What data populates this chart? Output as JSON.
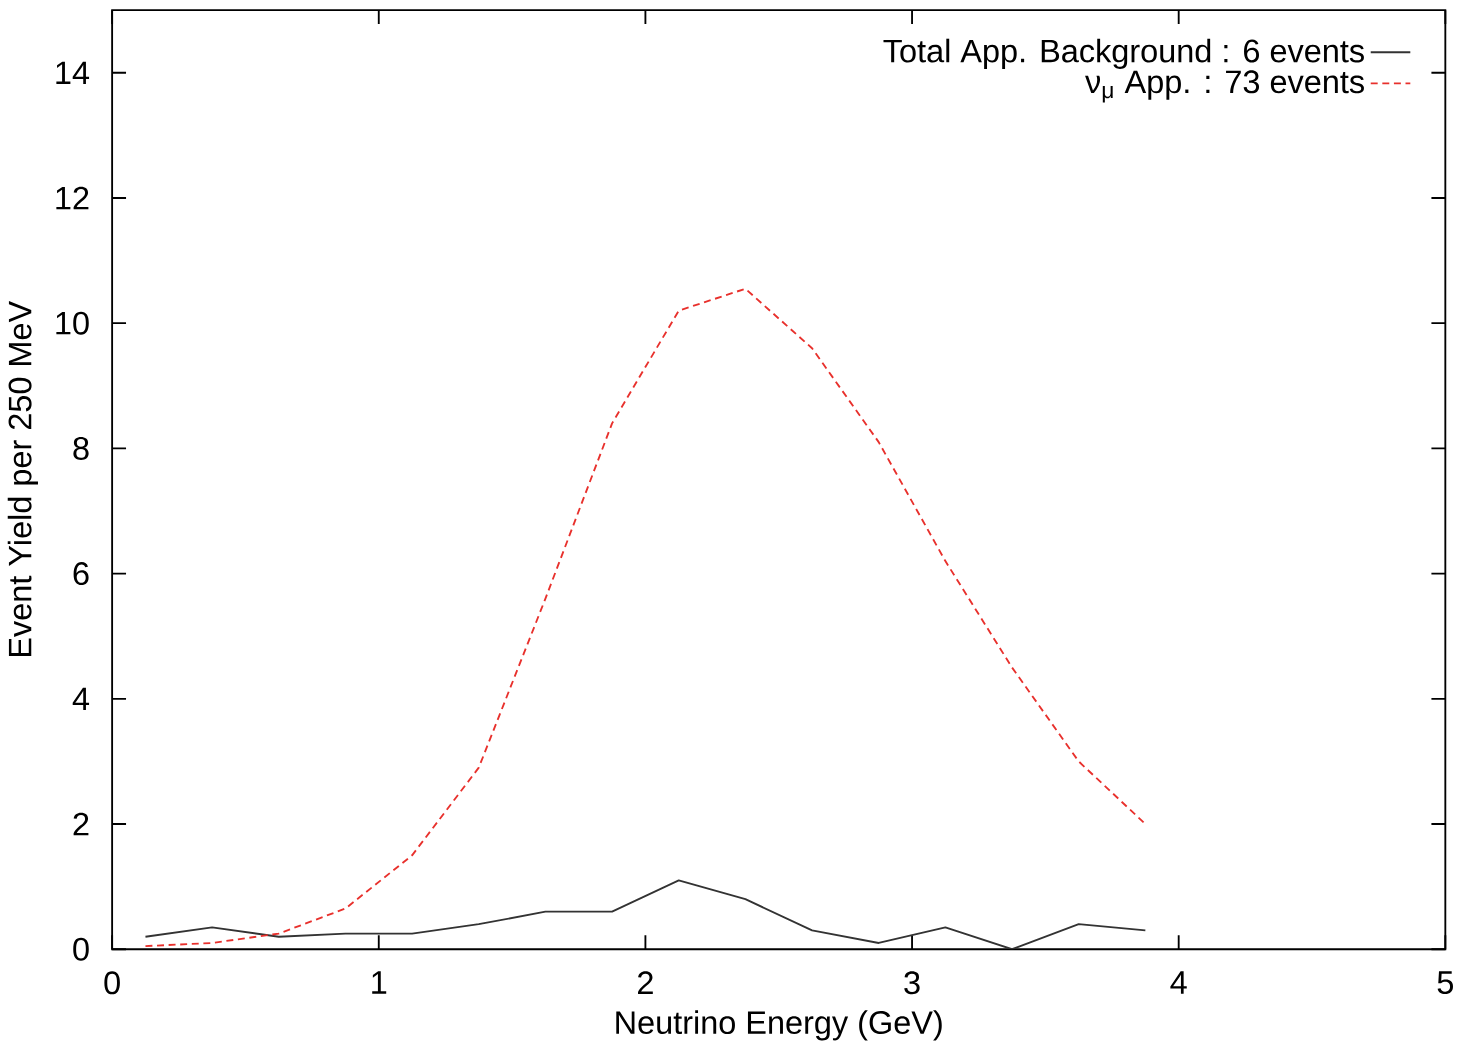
{
  "chart_data": {
    "type": "line",
    "xlabel": "Neutrino Energy (GeV)",
    "ylabel": "Event Yield per 250 MeV",
    "x": [
      0.125,
      0.375,
      0.625,
      0.875,
      1.125,
      1.375,
      1.625,
      1.875,
      2.125,
      2.375,
      2.625,
      2.875,
      3.125,
      3.375,
      3.625,
      3.875
    ],
    "series": [
      {
        "name": "Total App. Background : 6 events",
        "color": "#333333",
        "line_style": "solid",
        "values": [
          0.2,
          0.35,
          0.2,
          0.25,
          0.25,
          0.4,
          0.6,
          0.6,
          1.1,
          0.8,
          0.3,
          0.1,
          0.35,
          0.0,
          0.4,
          0.3
        ]
      },
      {
        "name": "ν$_{μ}$ App. : 73 events",
        "color": "#e8302c",
        "line_style": "dotted",
        "values": [
          0.05,
          0.1,
          0.25,
          0.65,
          1.5,
          2.9,
          5.6,
          8.4,
          10.2,
          10.55,
          9.6,
          8.1,
          6.2,
          4.5,
          3.0,
          2.0
        ]
      }
    ],
    "xlim": [
      0,
      5
    ],
    "ylim": [
      0,
      15
    ],
    "xticks": [
      0,
      1,
      2,
      3,
      4,
      5
    ],
    "yticks": [
      0,
      2,
      4,
      6,
      8,
      10,
      12,
      14
    ],
    "grid": false,
    "legend": "top right",
    "marker": "none"
  }
}
